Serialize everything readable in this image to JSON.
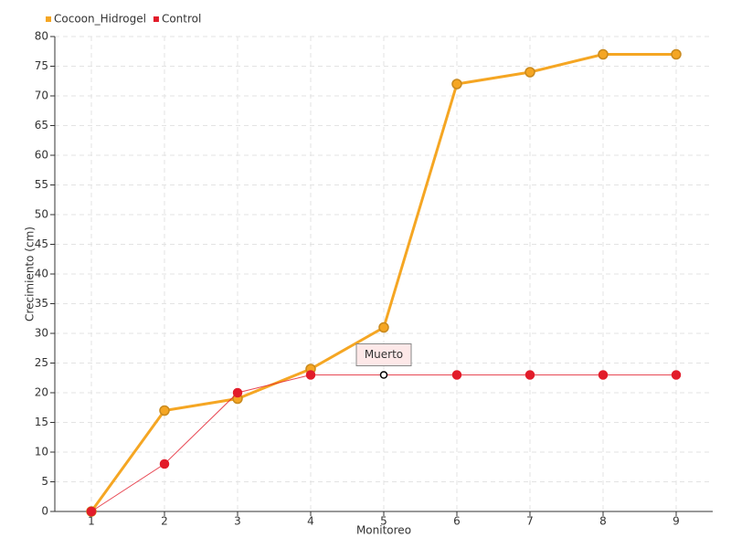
{
  "chart_data": {
    "type": "line",
    "x_label": "Monitoreo",
    "y_label": "Crecimiento (cm)",
    "categories": [
      "1",
      "2",
      "3",
      "4",
      "5",
      "6",
      "7",
      "8",
      "9"
    ],
    "series": [
      {
        "name": "Cocoon_Hidrogel",
        "color": "#f5a623",
        "values": [
          0,
          17,
          19,
          24,
          31,
          72,
          74,
          77,
          77
        ]
      },
      {
        "name": "Control",
        "color": "#e21c2a",
        "values": [
          0,
          8,
          20,
          23,
          23,
          23,
          23,
          23,
          23
        ]
      }
    ],
    "annotation": "Muerto",
    "ylim": [
      0,
      80
    ],
    "yticks": [
      0,
      5,
      10,
      15,
      20,
      25,
      30,
      35,
      40,
      45,
      50,
      55,
      60,
      65,
      70,
      75,
      80
    ],
    "grid": true,
    "legend": "top-left"
  }
}
